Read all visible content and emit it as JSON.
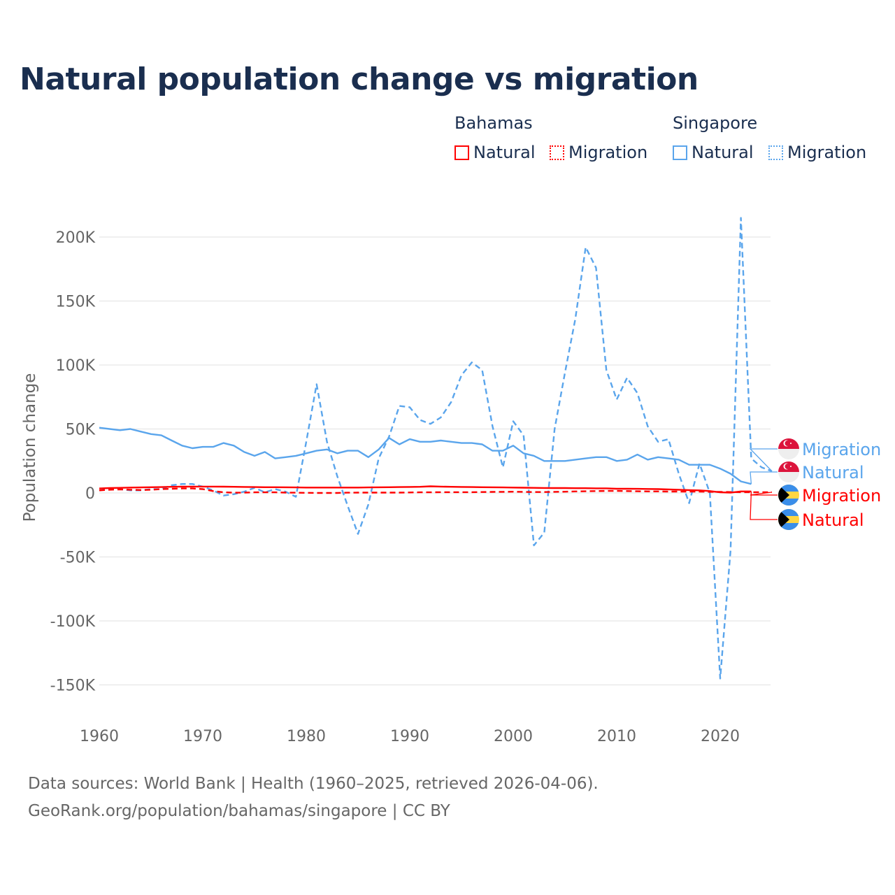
{
  "chart_data": {
    "type": "line",
    "title": "Natural population change vs migration",
    "xlabel": "",
    "ylabel": "Population change",
    "xlim": [
      1960,
      2025
    ],
    "ylim": [
      -170000,
      230000
    ],
    "x_ticks": [
      1960,
      1970,
      1980,
      1990,
      2000,
      2010,
      2020
    ],
    "x_tick_labels": [
      "1960",
      "1970",
      "1980",
      "1990",
      "2000",
      "2010",
      "2020"
    ],
    "y_ticks": [
      200000,
      150000,
      100000,
      50000,
      0,
      -50000,
      -100000,
      -150000
    ],
    "y_tick_labels": [
      "200K",
      "150K",
      "100K",
      "50K",
      "0",
      "-50K",
      "-100K",
      "-150K"
    ],
    "grid": true,
    "legend_placement": "top-right",
    "legend_groups": [
      "Bahamas",
      "Singapore"
    ],
    "series": [
      {
        "name": "Natural",
        "group": "Bahamas",
        "color": "#ff0000",
        "dash": "solid",
        "end_label": "Natural",
        "start_year": 1960,
        "values": [
          3500,
          3800,
          4000,
          4200,
          4300,
          4500,
          4600,
          4800,
          4900,
          5000,
          5000,
          5000,
          4900,
          4800,
          4700,
          4600,
          4500,
          4500,
          4400,
          4300,
          4200,
          4200,
          4200,
          4200,
          4200,
          4200,
          4300,
          4400,
          4500,
          4600,
          4700,
          4800,
          5200,
          5000,
          4800,
          4700,
          4600,
          4500,
          4400,
          4300,
          4200,
          4100,
          4000,
          3900,
          3800,
          3800,
          3700,
          3700,
          3600,
          3600,
          3300,
          3300,
          3200,
          3100,
          3000,
          2800,
          2500,
          2200,
          2000,
          1500,
          500,
          200,
          1200,
          1200
        ]
      },
      {
        "name": "Migration",
        "group": "Bahamas",
        "color": "#ff0000",
        "dash": "dashed",
        "end_label": "Migration",
        "start_year": 1960,
        "values": [
          2000,
          2500,
          2800,
          2500,
          2300,
          2500,
          3000,
          3300,
          3500,
          3500,
          3000,
          1500,
          500,
          200,
          300,
          500,
          500,
          500,
          300,
          200,
          100,
          0,
          0,
          0,
          200,
          300,
          300,
          300,
          300,
          300,
          400,
          500,
          500,
          600,
          600,
          600,
          600,
          700,
          800,
          900,
          1000,
          800,
          700,
          700,
          900,
          1000,
          1200,
          1300,
          1500,
          1600,
          1600,
          1500,
          1300,
          1200,
          1200,
          1100,
          1100,
          1100,
          1100,
          900,
          800,
          700,
          600,
          600,
          600,
          600
        ]
      },
      {
        "name": "Natural",
        "group": "Singapore",
        "color": "#5aa5ec",
        "dash": "solid",
        "end_label": "Natural",
        "start_year": 1960,
        "values": [
          51000,
          50000,
          49000,
          50000,
          48000,
          46000,
          45000,
          41000,
          37000,
          35000,
          36000,
          36000,
          39000,
          37000,
          32000,
          29000,
          32000,
          27000,
          28000,
          29000,
          31000,
          33000,
          34000,
          31000,
          33000,
          33000,
          28000,
          34000,
          43000,
          38000,
          42000,
          40000,
          40000,
          41000,
          40000,
          39000,
          39000,
          38000,
          33000,
          33000,
          37000,
          31000,
          29000,
          25000,
          25000,
          25000,
          26000,
          27000,
          28000,
          28000,
          25000,
          26000,
          30000,
          26000,
          28000,
          27000,
          26000,
          22000,
          22000,
          22000,
          19000,
          15000,
          9000,
          7000
        ]
      },
      {
        "name": "Migration",
        "group": "Singapore",
        "color": "#5aa5ec",
        "dash": "dashed",
        "end_label": "Migration",
        "start_year": 1960,
        "values": [
          2000,
          3000,
          3000,
          2000,
          2000,
          3000,
          3000,
          6000,
          7000,
          7000,
          5000,
          2000,
          -2000,
          -1000,
          1000,
          4000,
          500,
          3000,
          1000,
          -3000,
          40000,
          85000,
          40000,
          13000,
          -10000,
          -32000,
          -9000,
          27000,
          44000,
          68000,
          67000,
          57000,
          54000,
          59000,
          71000,
          92000,
          102000,
          96000,
          52000,
          20000,
          56000,
          45000,
          -41000,
          -31000,
          50000,
          94000,
          136000,
          192000,
          176000,
          96000,
          73000,
          90000,
          78000,
          52000,
          40000,
          42000,
          15000,
          -8000,
          23000,
          0,
          -145000,
          -45000,
          215000,
          27000,
          20000,
          17000
        ]
      }
    ]
  },
  "legend": {
    "bahamas": {
      "title": "Bahamas",
      "natural": "Natural",
      "migration": "Migration"
    },
    "singapore": {
      "title": "Singapore",
      "natural": "Natural",
      "migration": "Migration"
    }
  },
  "footer": {
    "line1": "Data sources: World Bank | Health (1960–2025, retrieved 2026-04-06).",
    "line2": "GeoRank.org/population/bahamas/singapore | CC BY"
  },
  "colors": {
    "bahamas": "#ff0000",
    "singapore": "#5aa5ec",
    "title": "#1a2e4f"
  }
}
